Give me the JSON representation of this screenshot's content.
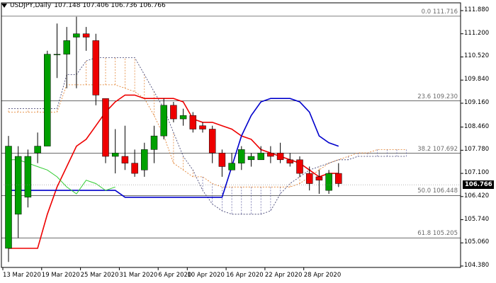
{
  "header": {
    "symbol": "USDJPY,Daily",
    "ohlc": "107.148 107.406 106.736 106.766"
  },
  "current_price": "106.766",
  "y_ticks": [
    "111.880",
    "111.200",
    "110.520",
    "109.840",
    "109.160",
    "108.460",
    "107.780",
    "107.100",
    "106.420",
    "105.740",
    "105.060",
    "104.380"
  ],
  "x_ticks": [
    "13 Mar 2020",
    "19 Mar 2020",
    "25 Mar 2020",
    "31 Mar 2020",
    "6 Apr 2020",
    "10 Apr 2020",
    "16 Apr 2020",
    "22 Apr 2020",
    "28 Apr 2020"
  ],
  "fib_levels": [
    {
      "label": "0.0 111.716",
      "value": 111.716
    },
    {
      "label": "23.6 109.230",
      "value": 109.23
    },
    {
      "label": "38.2 107.692",
      "value": 107.692
    },
    {
      "label": "50.0 106.448",
      "value": 106.448
    },
    {
      "label": "61.8 105.205",
      "value": 105.205
    }
  ],
  "colors": {
    "bull": "#00a000",
    "bear": "#ee0000",
    "tenkan": "#ee0000",
    "kijun": "#0000cc",
    "chikou": "#33cc33",
    "cloud": "#e07820",
    "grid": "#000000"
  },
  "chart_data": {
    "type": "candlestick",
    "title": "USDJPY,Daily",
    "ylim": [
      104.38,
      111.88
    ],
    "candles": [
      {
        "o": 104.9,
        "h": 108.2,
        "l": 104.5,
        "c": 107.9
      },
      {
        "o": 105.9,
        "h": 107.9,
        "l": 105.2,
        "c": 107.6
      },
      {
        "o": 106.4,
        "h": 107.8,
        "l": 106.1,
        "c": 107.6
      },
      {
        "o": 107.7,
        "h": 108.3,
        "l": 107.4,
        "c": 107.9
      },
      {
        "o": 107.9,
        "h": 110.7,
        "l": 107.9,
        "c": 110.6
      },
      {
        "o": 110.6,
        "h": 111.5,
        "l": 109.9,
        "c": 110.6
      },
      {
        "o": 110.6,
        "h": 111.4,
        "l": 109.6,
        "c": 111.0
      },
      {
        "o": 111.1,
        "h": 111.7,
        "l": 109.6,
        "c": 111.2
      },
      {
        "o": 111.2,
        "h": 111.4,
        "l": 110.7,
        "c": 111.1
      },
      {
        "o": 111.0,
        "h": 111.2,
        "l": 109.1,
        "c": 109.4
      },
      {
        "o": 109.3,
        "h": 109.3,
        "l": 107.4,
        "c": 107.6
      },
      {
        "o": 107.6,
        "h": 108.4,
        "l": 107.1,
        "c": 107.7
      },
      {
        "o": 107.6,
        "h": 108.5,
        "l": 107.2,
        "c": 107.4
      },
      {
        "o": 107.4,
        "h": 107.8,
        "l": 107.0,
        "c": 107.1
      },
      {
        "o": 107.2,
        "h": 108.0,
        "l": 107.0,
        "c": 107.8
      },
      {
        "o": 107.8,
        "h": 108.5,
        "l": 107.4,
        "c": 108.2
      },
      {
        "o": 108.2,
        "h": 109.3,
        "l": 108.1,
        "c": 109.1
      },
      {
        "o": 109.1,
        "h": 109.2,
        "l": 108.6,
        "c": 108.7
      },
      {
        "o": 108.7,
        "h": 109.0,
        "l": 108.5,
        "c": 108.8
      },
      {
        "o": 108.8,
        "h": 108.9,
        "l": 108.3,
        "c": 108.4
      },
      {
        "o": 108.5,
        "h": 108.6,
        "l": 108.3,
        "c": 108.4
      },
      {
        "o": 108.4,
        "h": 108.5,
        "l": 107.4,
        "c": 107.7
      },
      {
        "o": 107.7,
        "h": 107.8,
        "l": 107.0,
        "c": 107.3
      },
      {
        "o": 107.2,
        "h": 107.7,
        "l": 107.2,
        "c": 107.4
      },
      {
        "o": 107.4,
        "h": 107.9,
        "l": 107.2,
        "c": 107.8
      },
      {
        "o": 107.5,
        "h": 107.7,
        "l": 107.3,
        "c": 107.6
      },
      {
        "o": 107.5,
        "h": 107.9,
        "l": 107.5,
        "c": 107.7
      },
      {
        "o": 107.7,
        "h": 107.9,
        "l": 107.4,
        "c": 107.6
      },
      {
        "o": 107.7,
        "h": 108.0,
        "l": 107.4,
        "c": 107.5
      },
      {
        "o": 107.5,
        "h": 107.7,
        "l": 107.3,
        "c": 107.4
      },
      {
        "o": 107.5,
        "h": 107.6,
        "l": 107.0,
        "c": 107.1
      },
      {
        "o": 107.1,
        "h": 107.3,
        "l": 106.6,
        "c": 106.8
      },
      {
        "o": 107.0,
        "h": 107.2,
        "l": 106.5,
        "c": 106.9
      },
      {
        "o": 106.6,
        "h": 107.2,
        "l": 106.5,
        "c": 107.1
      },
      {
        "o": 107.1,
        "h": 107.4,
        "l": 106.7,
        "c": 106.8
      }
    ],
    "tenkan": [
      104.9,
      104.9,
      104.9,
      104.9,
      105.9,
      106.7,
      107.3,
      107.9,
      108.1,
      108.5,
      108.9,
      109.2,
      109.4,
      109.4,
      109.3,
      109.3,
      109.3,
      109.3,
      109.2,
      108.7,
      108.6,
      108.6,
      108.5,
      108.4,
      108.2,
      108.1,
      107.8,
      107.7,
      107.6,
      107.5,
      107.4,
      107.2,
      107.0,
      107.1,
      107.1
    ],
    "kijun": [
      106.6,
      106.6,
      106.6,
      106.6,
      106.6,
      106.6,
      106.6,
      106.6,
      106.6,
      106.6,
      106.6,
      106.6,
      106.4,
      106.4,
      106.4,
      106.4,
      106.4,
      106.4,
      106.4,
      106.4,
      106.4,
      106.4,
      106.4,
      107.3,
      108.2,
      108.8,
      109.2,
      109.3,
      109.3,
      109.3,
      109.2,
      108.9,
      108.2,
      108.0,
      107.9
    ],
    "chikou": [
      107.5,
      107.5,
      107.4,
      107.3,
      107.2,
      107.0,
      106.7,
      106.5,
      106.9,
      106.8,
      106.6,
      106.7
    ],
    "senkou_a": [
      108.9,
      108.9,
      108.9,
      108.9,
      108.9,
      108.9,
      109.7,
      109.7,
      109.7,
      109.7,
      109.7,
      109.7,
      109.6,
      109.5,
      109.3,
      108.8,
      108.2,
      107.4,
      107.2,
      107.0,
      107.0,
      106.8,
      106.7,
      106.7,
      106.7,
      106.7,
      106.7,
      106.7,
      106.7,
      106.7,
      106.8,
      107.0,
      107.2,
      107.4,
      107.5,
      107.6,
      107.7,
      107.7,
      107.8,
      107.8,
      107.8,
      107.8
    ],
    "senkou_b": [
      109.0,
      109.0,
      109.0,
      109.0,
      109.0,
      109.0,
      110.0,
      110.0,
      110.4,
      110.5,
      110.5,
      110.5,
      110.5,
      110.5,
      110.0,
      109.5,
      109.0,
      108.3,
      107.6,
      107.2,
      106.6,
      106.2,
      106.0,
      105.9,
      105.9,
      105.9,
      105.9,
      106.0,
      106.5,
      106.8,
      107.0,
      107.2,
      107.3,
      107.4,
      107.5,
      107.5,
      107.6,
      107.6,
      107.6,
      107.6,
      107.6,
      107.6
    ]
  }
}
